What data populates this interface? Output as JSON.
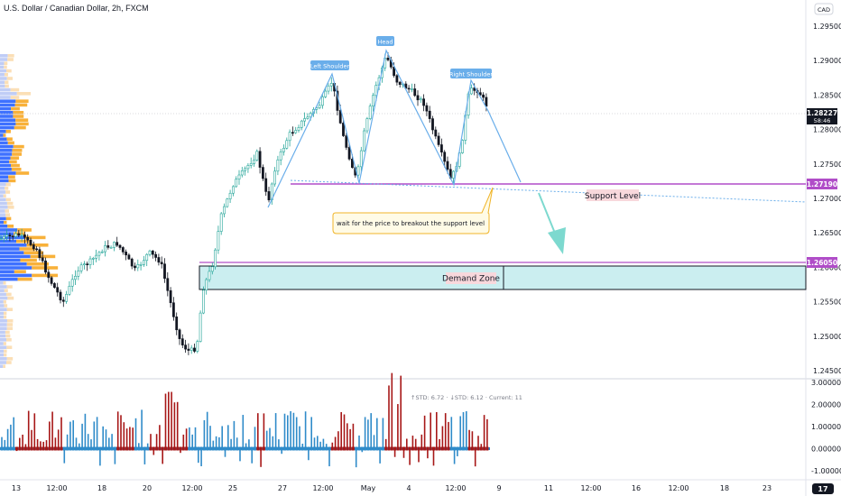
{
  "title": "U.S. Dollar / Canadian Dollar, 2h, FXCM",
  "currency_badge": "CAD",
  "price_axis": {
    "labels": [
      "1.29500",
      "1.29000",
      "1.28500",
      "1.28000",
      "1.27500",
      "1.27000",
      "1.26500",
      "1.26000",
      "1.25500",
      "1.25000",
      "1.24500"
    ]
  },
  "current_price": {
    "value": "1.28227",
    "countdown": "58:46"
  },
  "support_price_tag": "1.27190",
  "demand_price_tag": "1.26050",
  "indicator_axis": {
    "labels": [
      "3.00000",
      "2.00000",
      "1.00000",
      "0.00000",
      "-1.00000"
    ]
  },
  "indicator_legend": "↑STD: 6.72 · ↓STD: 6.12 · Current: 11",
  "time_axis": {
    "labels": [
      "13",
      "12:00",
      "18",
      "12:00",
      "20",
      "12:00",
      "25",
      "12:00",
      "27",
      "12:00",
      "May",
      "12:00",
      "4",
      "12:00",
      "9",
      "12:00",
      "11",
      "12:00",
      "16",
      "12:00",
      "18",
      "12:00",
      "23",
      "12:00"
    ]
  },
  "annotations": {
    "left_shoulder": "Left Shoulder",
    "head": "Head",
    "right_shoulder": "Right Shoulder",
    "support_level": "Support Level",
    "demand_zone": "Demand Zone",
    "note": "wait for the price to breakout the support level"
  },
  "colors": {
    "up": "#26a69a",
    "down": "#131722",
    "level_line": "#b04dc8",
    "demand_fill": "#cbeef0",
    "pattern_line": "#6aaeea",
    "arrow": "#7dd9cf",
    "hist_up": "#2f8bc9",
    "hist_down": "#a71717",
    "profile_blue": "#2962ff",
    "profile_orange": "#f7a825"
  }
}
